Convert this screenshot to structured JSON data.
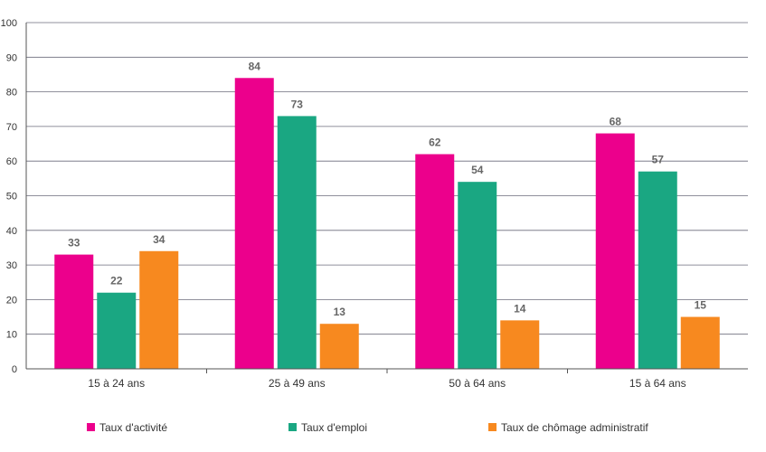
{
  "chart_data": {
    "type": "bar",
    "categories": [
      "15 à 24 ans",
      "25 à 49 ans",
      "50 à 64 ans",
      "15 à 64 ans"
    ],
    "series": [
      {
        "name": "Taux d'activité",
        "values": [
          33,
          84,
          62,
          68
        ],
        "color": "#EC008C"
      },
      {
        "name": "Taux d'emploi",
        "values": [
          22,
          73,
          54,
          57
        ],
        "color": "#1AA782"
      },
      {
        "name": "Taux de chômage administratif",
        "values": [
          34,
          13,
          14,
          15
        ],
        "color": "#F7891F"
      }
    ],
    "ylim": [
      0,
      100
    ],
    "yticks": [
      0,
      10,
      20,
      30,
      40,
      50,
      60,
      70,
      80,
      90,
      100
    ],
    "grid": true,
    "legend_position": "bottom"
  }
}
